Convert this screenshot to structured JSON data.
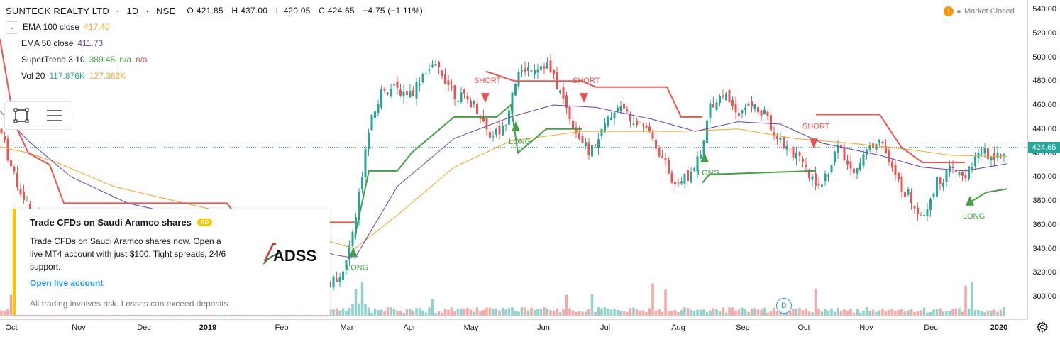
{
  "header": {
    "symbol": "SUNTECK REALTY LTD",
    "interval": "1D",
    "exchange": "NSE",
    "open_label": "O",
    "open": "421.85",
    "high_label": "H",
    "high": "437.00",
    "low_label": "L",
    "low": "420.05",
    "close_label": "C",
    "close": "424.65",
    "change": "−4.75 (−1.11%)",
    "market_status": "Market Closed"
  },
  "indicators": [
    {
      "name": "EMA 100 close",
      "value": "417.40",
      "color": "#f5a623"
    },
    {
      "name": "EMA 50 close",
      "value": "411.73",
      "color": "#6a3fb8"
    },
    {
      "name": "SuperTrend 3 10",
      "value": "389.45",
      "extra1": "n/a",
      "extra2": "n/a",
      "color": "#43a047"
    },
    {
      "name": "Vol 20",
      "value": "117.876K",
      "value2": "127.362K",
      "color": "#26a69a"
    }
  ],
  "ad": {
    "title": "Trade CFDs on Saudi Aramco shares",
    "badge": "AD",
    "body": "Trade CFDs on Saudi Aramco shares now. Open a live MT4 account with just $100. Tight spreads, 24/6 support.",
    "link": "Open live account",
    "risk": "All trading involves risk. Losses can exceed deposits.",
    "logo_text": "ADSS"
  },
  "event_marker": "D",
  "chart_data": {
    "type": "candlestick",
    "title": "SUNTECK REALTY LTD · 1D · NSE",
    "y_ticks": [
      "540.00",
      "520.00",
      "500.00",
      "480.00",
      "460.00",
      "440.00",
      "420.00",
      "400.00",
      "380.00",
      "360.00",
      "340.00",
      "320.00",
      "300.00"
    ],
    "ylim": [
      290,
      545
    ],
    "last_price": "424.65",
    "x_ticks": [
      "Oct",
      "Nov",
      "Dec",
      "2019",
      "Feb",
      "Mar",
      "Apr",
      "May",
      "Jun",
      "Jul",
      "Aug",
      "Sep",
      "Oct",
      "Nov",
      "Dec",
      "2020"
    ],
    "signals": [
      {
        "label": "SHORT",
        "color": "#ef5350",
        "at": "May",
        "price": 470
      },
      {
        "label": "LONG",
        "color": "#43a047",
        "at": "May",
        "price": 438
      },
      {
        "label": "SHORT",
        "color": "#ef5350",
        "at": "Jun",
        "price": 470
      },
      {
        "label": "LONG",
        "color": "#43a047",
        "at": "Mar",
        "price": 333
      },
      {
        "label": "LONG",
        "color": "#43a047",
        "at": "Aug",
        "price": 412
      },
      {
        "label": "SHORT",
        "color": "#ef5350",
        "at": "Oct",
        "price": 432
      },
      {
        "label": "LONG",
        "color": "#43a047",
        "at": "Dec",
        "price": 376
      }
    ],
    "ema100_approx": [
      [
        0,
        425
      ],
      [
        40,
        420
      ],
      [
        80,
        412
      ],
      [
        160,
        392
      ],
      [
        260,
        378
      ],
      [
        380,
        362
      ],
      [
        470,
        345
      ],
      [
        500,
        340
      ],
      [
        560,
        368
      ],
      [
        640,
        408
      ],
      [
        720,
        430
      ],
      [
        820,
        438
      ],
      [
        960,
        438
      ],
      [
        1040,
        440
      ],
      [
        1120,
        432
      ],
      [
        1200,
        428
      ],
      [
        1280,
        423
      ],
      [
        1340,
        418
      ],
      [
        1420,
        417
      ]
    ],
    "ema50_approx": [
      [
        0,
        455
      ],
      [
        40,
        430
      ],
      [
        100,
        400
      ],
      [
        180,
        378
      ],
      [
        280,
        365
      ],
      [
        400,
        350
      ],
      [
        470,
        335
      ],
      [
        500,
        332
      ],
      [
        560,
        392
      ],
      [
        640,
        432
      ],
      [
        720,
        450
      ],
      [
        780,
        460
      ],
      [
        840,
        458
      ],
      [
        920,
        448
      ],
      [
        980,
        438
      ],
      [
        1040,
        446
      ],
      [
        1100,
        444
      ],
      [
        1160,
        428
      ],
      [
        1240,
        418
      ],
      [
        1300,
        408
      ],
      [
        1360,
        405
      ],
      [
        1420,
        411
      ]
    ],
    "supertrend_red": [
      [
        0,
        515
      ],
      [
        20,
        445
      ],
      [
        40,
        420
      ],
      [
        70,
        410
      ],
      [
        90,
        378
      ],
      [
        320,
        378
      ],
      [
        330,
        370
      ],
      [
        460,
        362
      ],
      [
        500,
        362
      ]
    ],
    "supertrend_green1": [
      [
        500,
        350
      ],
      [
        520,
        405
      ],
      [
        560,
        405
      ],
      [
        580,
        420
      ],
      [
        620,
        440
      ],
      [
        640,
        450
      ],
      [
        700,
        450
      ],
      [
        720,
        460
      ],
      [
        730,
        420
      ],
      [
        770,
        440
      ],
      [
        820,
        440
      ]
    ],
    "supertrend_red2": [
      [
        685,
        488
      ],
      [
        700,
        485
      ],
      [
        725,
        480
      ],
      [
        820,
        480
      ],
      [
        840,
        475
      ],
      [
        940,
        475
      ],
      [
        960,
        450
      ],
      [
        990,
        450
      ]
    ],
    "supertrend_green2": [
      [
        990,
        395
      ],
      [
        1000,
        402
      ],
      [
        1150,
        405
      ]
    ],
    "supertrend_red3": [
      [
        1150,
        452
      ],
      [
        1240,
        452
      ],
      [
        1270,
        425
      ],
      [
        1300,
        412
      ],
      [
        1360,
        412
      ]
    ],
    "supertrend_green3": [
      [
        1365,
        378
      ],
      [
        1390,
        387
      ],
      [
        1420,
        390
      ]
    ]
  }
}
